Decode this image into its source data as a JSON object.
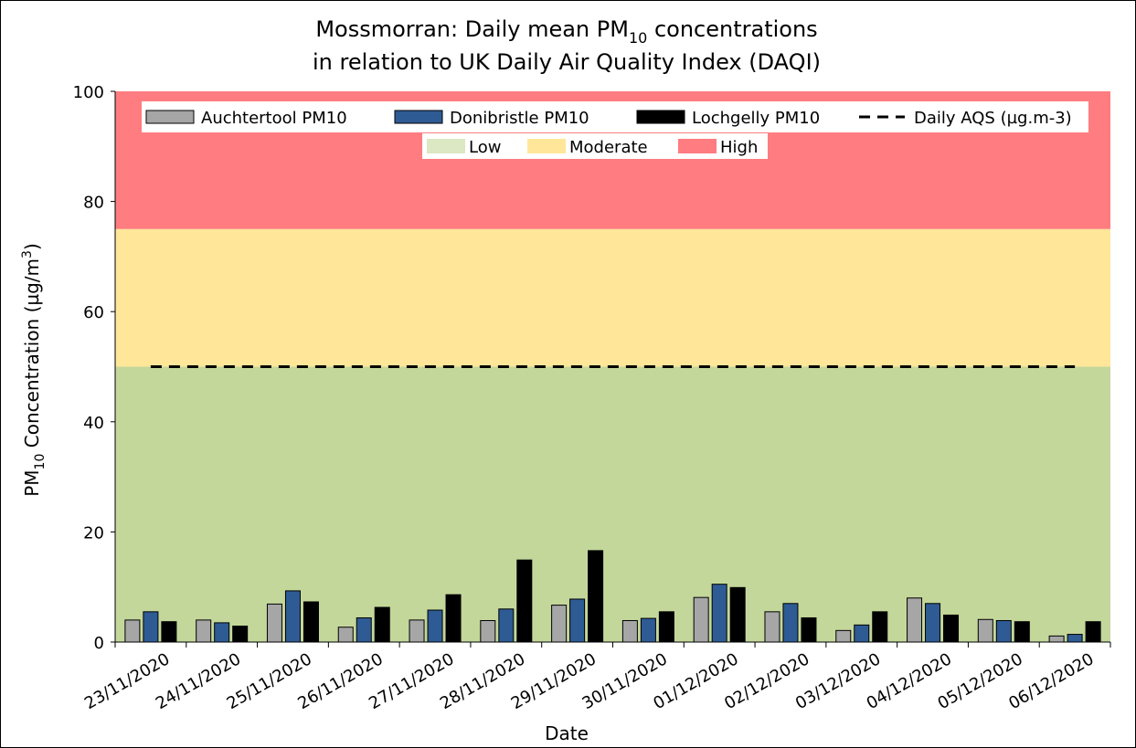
{
  "chart_data": {
    "type": "bar",
    "title": {
      "line1": {
        "before": "Mossmorran: Daily mean PM",
        "sub": "10",
        "after": " concentrations"
      },
      "line2": "in relation to UK Daily Air Quality Index (DAQI)"
    },
    "y_label": {
      "before": "PM",
      "sub": "10",
      "middle": " Concentration (µg/m",
      "sup": "3",
      "after": ")"
    },
    "x_label": "Date",
    "categories": [
      "23/11/2020",
      "24/11/2020",
      "25/11/2020",
      "26/11/2020",
      "27/11/2020",
      "28/11/2020",
      "29/11/2020",
      "30/11/2020",
      "01/12/2020",
      "02/12/2020",
      "03/12/2020",
      "04/12/2020",
      "05/12/2020",
      "06/12/2020"
    ],
    "series": [
      {
        "name": "Auchtertool PM10",
        "color": "#a6a6a6",
        "values": [
          4.0,
          4.0,
          6.9,
          2.7,
          4.0,
          3.9,
          6.7,
          3.9,
          8.1,
          5.5,
          2.1,
          8.0,
          4.1,
          1.1
        ]
      },
      {
        "name": "Donibristle PM10",
        "color": "#2e5b94",
        "values": [
          5.5,
          3.5,
          9.3,
          4.4,
          5.8,
          6.0,
          7.8,
          4.3,
          10.5,
          7.0,
          3.1,
          7.0,
          3.9,
          1.4
        ]
      },
      {
        "name": "Lochgelly PM10",
        "color": "#000000",
        "values": [
          3.7,
          2.9,
          7.3,
          6.3,
          8.6,
          14.9,
          16.6,
          5.5,
          9.9,
          4.4,
          5.5,
          4.9,
          3.7,
          3.7
        ]
      },
      {
        "name": "Daily AQS (µg.m-3)",
        "type": "line",
        "dashed": true,
        "color": "#000000",
        "values": [
          50,
          50,
          50,
          50,
          50,
          50,
          50,
          50,
          50,
          50,
          50,
          50,
          50,
          50
        ]
      }
    ],
    "bands": [
      {
        "name": "Low",
        "color": "#c4d79b",
        "range": [
          0,
          50
        ]
      },
      {
        "name": "Moderate",
        "color": "#ffe699",
        "range": [
          50,
          75
        ]
      },
      {
        "name": "High",
        "color": "#ff7c80",
        "range": [
          75,
          100
        ]
      }
    ],
    "ylim": [
      0,
      100
    ],
    "yticks": [
      0,
      20,
      40,
      60,
      80,
      100
    ],
    "grid": false
  }
}
